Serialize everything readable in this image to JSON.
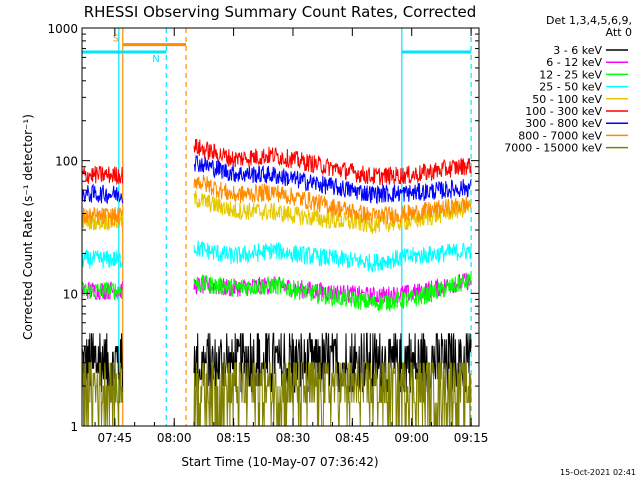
{
  "chart_data": {
    "type": "line",
    "title": "RHESSI Observing Summary Count Rates, Corrected",
    "xlabel": "Start Time (10-May-07 07:36:42)",
    "ylabel": "Corrected Count Rate (s⁻¹ detector⁻¹)",
    "x_scale": "time",
    "y_scale": "log",
    "ylim": [
      1,
      1000
    ],
    "xlim": [
      "07:36:42",
      "09:17:00"
    ],
    "x_ticks": [
      "07:45",
      "08:00",
      "08:15",
      "08:30",
      "08:45",
      "09:00",
      "09:15"
    ],
    "y_ticks": [
      "1",
      "10",
      "100",
      "1000"
    ],
    "legend_header": [
      "Det 1,3,4,5,6,9,",
      "Att 0"
    ],
    "legend_placement": "right, outside plot",
    "footer_date": "15-Oct-2021 02:41",
    "segments": [
      {
        "start": "07:36:42",
        "end": "07:47:00"
      },
      {
        "start": "08:05:00",
        "end": "09:15:00"
      }
    ],
    "series": [
      {
        "name": "3 - 6 keV",
        "color": "#000000",
        "style": "noisy_step",
        "points": [
          [
            "07:37",
            2.6
          ],
          [
            "07:47",
            2.6
          ],
          [
            "08:05",
            3.9
          ],
          [
            "08:20",
            3.5
          ],
          [
            "08:35",
            3.3
          ],
          [
            "08:50",
            3.0
          ],
          [
            "09:05",
            3.6
          ],
          [
            "09:15",
            3.8
          ]
        ]
      },
      {
        "name": "6 - 12 keV",
        "color": "#ff00ff",
        "points": [
          [
            "07:37",
            10.5
          ],
          [
            "07:47",
            10.5
          ],
          [
            "08:05",
            11.5
          ],
          [
            "08:15",
            11
          ],
          [
            "08:25",
            11.5
          ],
          [
            "08:35",
            10.5
          ],
          [
            "08:50",
            9.5
          ],
          [
            "09:00",
            10
          ],
          [
            "09:15",
            12.5
          ]
        ]
      },
      {
        "name": "12 - 25 keV",
        "color": "#00ff00",
        "points": [
          [
            "07:37",
            10.5
          ],
          [
            "07:47",
            10.5
          ],
          [
            "08:05",
            12
          ],
          [
            "08:15",
            11
          ],
          [
            "08:25",
            11.5
          ],
          [
            "08:35",
            10
          ],
          [
            "08:50",
            8.5
          ],
          [
            "09:00",
            9
          ],
          [
            "09:15",
            12.5
          ]
        ]
      },
      {
        "name": "25 - 50 keV",
        "color": "#00ffff",
        "points": [
          [
            "07:37",
            18
          ],
          [
            "07:47",
            18
          ],
          [
            "08:05",
            22
          ],
          [
            "08:15",
            19
          ],
          [
            "08:25",
            21
          ],
          [
            "08:35",
            19
          ],
          [
            "08:50",
            17
          ],
          [
            "09:00",
            19
          ],
          [
            "09:15",
            21
          ]
        ]
      },
      {
        "name": "50 - 100 keV",
        "color": "#e6c800",
        "points": [
          [
            "07:37",
            35
          ],
          [
            "07:47",
            35
          ],
          [
            "08:05",
            52
          ],
          [
            "08:15",
            42
          ],
          [
            "08:25",
            41
          ],
          [
            "08:35",
            37
          ],
          [
            "08:50",
            33
          ],
          [
            "09:00",
            35
          ],
          [
            "09:15",
            45
          ]
        ]
      },
      {
        "name": "100 - 300 keV",
        "color": "#ff0000",
        "points": [
          [
            "07:37",
            78
          ],
          [
            "07:47",
            78
          ],
          [
            "08:05",
            128
          ],
          [
            "08:15",
            103
          ],
          [
            "08:25",
            110
          ],
          [
            "08:35",
            95
          ],
          [
            "08:50",
            76
          ],
          [
            "09:00",
            78
          ],
          [
            "09:15",
            93
          ]
        ]
      },
      {
        "name": "300 - 800 keV",
        "color": "#0000ff",
        "points": [
          [
            "07:37",
            56
          ],
          [
            "07:47",
            56
          ],
          [
            "08:05",
            98
          ],
          [
            "08:15",
            80
          ],
          [
            "08:25",
            78
          ],
          [
            "08:35",
            68
          ],
          [
            "08:50",
            56
          ],
          [
            "09:00",
            57
          ],
          [
            "09:15",
            63
          ]
        ]
      },
      {
        "name": "800 - 7000 keV",
        "color": "#ff8c00",
        "points": [
          [
            "07:37",
            38
          ],
          [
            "07:47",
            38
          ],
          [
            "08:05",
            72
          ],
          [
            "08:15",
            55
          ],
          [
            "08:25",
            58
          ],
          [
            "08:35",
            49
          ],
          [
            "08:50",
            38
          ],
          [
            "09:00",
            40
          ],
          [
            "09:15",
            47
          ]
        ]
      },
      {
        "name": "7000 - 15000 keV",
        "color": "#808000",
        "style": "noisy_floor",
        "points": [
          [
            "07:37",
            1.6
          ],
          [
            "07:47",
            1.6
          ],
          [
            "08:05",
            1.6
          ],
          [
            "08:20",
            1.5
          ],
          [
            "08:35",
            1.5
          ],
          [
            "08:50",
            1.6
          ],
          [
            "09:05",
            1.8
          ],
          [
            "09:15",
            2.0
          ]
        ]
      }
    ],
    "flag_bars": [
      {
        "label": "S",
        "color": "#ff8c00",
        "start": "07:47:00",
        "end": "08:03:00",
        "level": 750
      },
      {
        "label": "N",
        "color": "#00e5ff",
        "start": "07:36:42",
        "end": "07:58:00",
        "level": 660
      },
      {
        "label": "",
        "color": "#00e5ff",
        "start": "08:57:30",
        "end": "09:15:00",
        "level": 660
      }
    ],
    "vertical_markers": [
      {
        "time": "07:46:00",
        "color": "#00e5ff",
        "dash": "solid"
      },
      {
        "time": "07:47:00",
        "color": "#ff8c00",
        "dash": "solid"
      },
      {
        "time": "07:58:00",
        "color": "#00e5ff",
        "dash": "dashed"
      },
      {
        "time": "08:03:00",
        "color": "#ff8c00",
        "dash": "dashed"
      },
      {
        "time": "08:57:30",
        "color": "#00e5ff",
        "dash": "solid"
      },
      {
        "time": "09:15:00",
        "color": "#00e5ff",
        "dash": "dashed"
      }
    ]
  }
}
